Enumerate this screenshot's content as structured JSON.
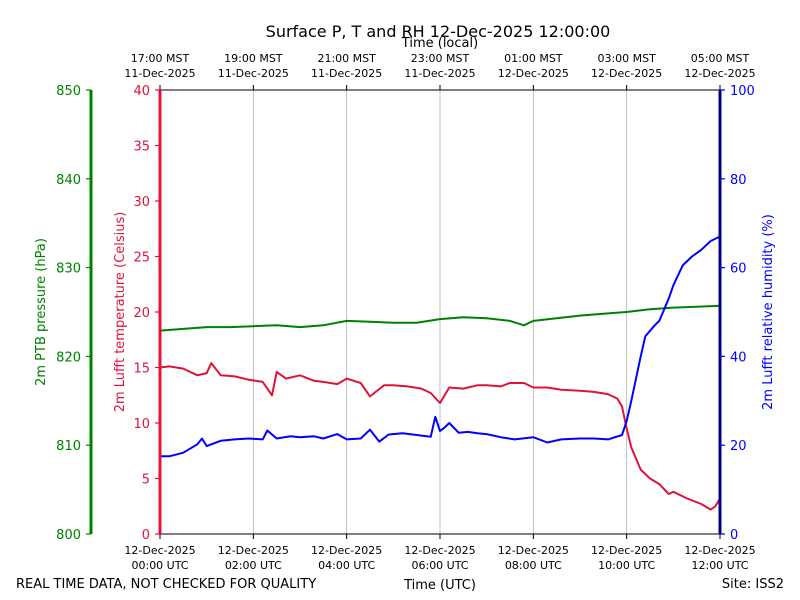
{
  "chart_data": {
    "type": "line",
    "title": "Surface P, T and RH 12-Dec-2025 12:00:00",
    "top_axis_label": "Time (local)",
    "bottom_axis_label": "Time (UTC)",
    "footer_left": "REAL TIME DATA, NOT CHECKED FOR QUALITY",
    "footer_right": "Site: ISS2",
    "x_unit": "hours since 12-Dec-2025 00:00 UTC",
    "xlim": [
      0,
      12
    ],
    "x_ticks_utc": [
      {
        "x": 0,
        "l1": "12-Dec-2025",
        "l2": "00:00 UTC"
      },
      {
        "x": 2,
        "l1": "12-Dec-2025",
        "l2": "02:00 UTC"
      },
      {
        "x": 4,
        "l1": "12-Dec-2025",
        "l2": "04:00 UTC"
      },
      {
        "x": 6,
        "l1": "12-Dec-2025",
        "l2": "06:00 UTC"
      },
      {
        "x": 8,
        "l1": "12-Dec-2025",
        "l2": "08:00 UTC"
      },
      {
        "x": 10,
        "l1": "12-Dec-2025",
        "l2": "10:00 UTC"
      },
      {
        "x": 12,
        "l1": "12-Dec-2025",
        "l2": "12:00 UTC"
      }
    ],
    "x_ticks_local": [
      {
        "x": 0,
        "l1": "17:00 MST",
        "l2": "11-Dec-2025"
      },
      {
        "x": 2,
        "l1": "19:00 MST",
        "l2": "11-Dec-2025"
      },
      {
        "x": 4,
        "l1": "21:00 MST",
        "l2": "11-Dec-2025"
      },
      {
        "x": 6,
        "l1": "23:00 MST",
        "l2": "11-Dec-2025"
      },
      {
        "x": 8,
        "l1": "01:00 MST",
        "l2": "12-Dec-2025"
      },
      {
        "x": 10,
        "l1": "03:00 MST",
        "l2": "12-Dec-2025"
      },
      {
        "x": 12,
        "l1": "05:00 MST",
        "l2": "12-Dec-2025"
      }
    ],
    "grid": "vertical",
    "axes": {
      "pressure": {
        "label": "2m PTB pressure (hPa)",
        "ylim": [
          800,
          850
        ],
        "ticks": [
          800,
          810,
          820,
          830,
          840,
          850
        ],
        "color": "#008000"
      },
      "temperature": {
        "label": "2m Lufft temperature (Celsius)",
        "ylim": [
          0,
          40
        ],
        "ticks": [
          0,
          5,
          10,
          15,
          20,
          25,
          30,
          35,
          40
        ],
        "color": "#dc143c"
      },
      "humidity": {
        "label": "2m Lufft relative humidity (%)",
        "ylim": [
          0,
          100
        ],
        "ticks": [
          0,
          20,
          40,
          60,
          80,
          100
        ],
        "color": "#0000ff"
      }
    },
    "series": [
      {
        "name": "2m PTB pressure (hPa)",
        "axis": "pressure",
        "color": "#008000",
        "x": [
          0,
          0.5,
          1,
          1.5,
          2,
          2.5,
          3,
          3.5,
          4,
          4.5,
          5,
          5.5,
          6,
          6.5,
          7,
          7.5,
          7.8,
          8,
          8.5,
          9,
          9.5,
          10,
          10.5,
          11,
          11.5,
          12
        ],
        "values": [
          822.9,
          823.1,
          823.3,
          823.3,
          823.4,
          823.5,
          823.3,
          823.5,
          824.0,
          823.9,
          823.8,
          823.8,
          824.2,
          824.4,
          824.3,
          824.0,
          823.5,
          824.0,
          824.3,
          824.6,
          824.8,
          825.0,
          825.3,
          825.5,
          825.6,
          825.7
        ]
      },
      {
        "name": "2m Lufft temperature (Celsius)",
        "axis": "temperature",
        "color": "#dc143c",
        "x": [
          0,
          0.2,
          0.5,
          0.8,
          1,
          1.1,
          1.3,
          1.6,
          1.9,
          2.2,
          2.4,
          2.5,
          2.7,
          3.0,
          3.3,
          3.5,
          3.8,
          4.0,
          4.3,
          4.5,
          4.8,
          5.0,
          5.3,
          5.6,
          5.8,
          6.0,
          6.2,
          6.5,
          6.8,
          7.0,
          7.3,
          7.5,
          7.8,
          8.0,
          8.3,
          8.6,
          9.0,
          9.3,
          9.6,
          9.8,
          9.9,
          10.0,
          10.1,
          10.3,
          10.5,
          10.7,
          10.9,
          11.0,
          11.3,
          11.6,
          11.8,
          11.9,
          12.0
        ],
        "values": [
          15.0,
          15.1,
          14.9,
          14.3,
          14.5,
          15.4,
          14.3,
          14.2,
          13.9,
          13.7,
          12.5,
          14.6,
          14.0,
          14.3,
          13.8,
          13.7,
          13.5,
          14.0,
          13.6,
          12.4,
          13.4,
          13.4,
          13.3,
          13.1,
          12.7,
          11.8,
          13.2,
          13.1,
          13.4,
          13.4,
          13.3,
          13.6,
          13.6,
          13.2,
          13.2,
          13.0,
          12.9,
          12.8,
          12.6,
          12.2,
          11.5,
          9.5,
          7.8,
          5.8,
          5.0,
          4.5,
          3.6,
          3.8,
          3.2,
          2.7,
          2.2,
          2.5,
          3.2
        ]
      },
      {
        "name": "2m Lufft relative humidity (%)",
        "axis": "humidity",
        "color": "#0000ff",
        "x": [
          0,
          0.2,
          0.5,
          0.8,
          0.9,
          1.0,
          1.3,
          1.6,
          1.9,
          2.2,
          2.3,
          2.5,
          2.8,
          3.0,
          3.3,
          3.5,
          3.8,
          4.0,
          4.3,
          4.5,
          4.7,
          4.9,
          5.2,
          5.5,
          5.8,
          5.9,
          6.0,
          6.1,
          6.2,
          6.4,
          6.6,
          6.8,
          7.0,
          7.3,
          7.6,
          8.0,
          8.3,
          8.6,
          9.0,
          9.3,
          9.6,
          9.9,
          10.0,
          10.1,
          10.3,
          10.4,
          10.6,
          10.7,
          10.9,
          11.0,
          11.2,
          11.4,
          11.6,
          11.8,
          12.0
        ],
        "values": [
          17.5,
          17.5,
          18.3,
          20.2,
          21.5,
          19.8,
          21.0,
          21.3,
          21.5,
          21.3,
          23.3,
          21.5,
          22.0,
          21.8,
          22.0,
          21.5,
          22.5,
          21.3,
          21.5,
          23.5,
          20.8,
          22.4,
          22.7,
          22.3,
          21.9,
          26.4,
          23.2,
          24.0,
          25.0,
          22.8,
          23.0,
          22.7,
          22.5,
          21.8,
          21.3,
          21.8,
          20.6,
          21.3,
          21.5,
          21.5,
          21.3,
          22.3,
          25.5,
          30.0,
          40.0,
          44.5,
          47.0,
          48.0,
          53.0,
          56.0,
          60.5,
          62.5,
          64.0,
          66.0,
          67.0
        ]
      }
    ]
  }
}
